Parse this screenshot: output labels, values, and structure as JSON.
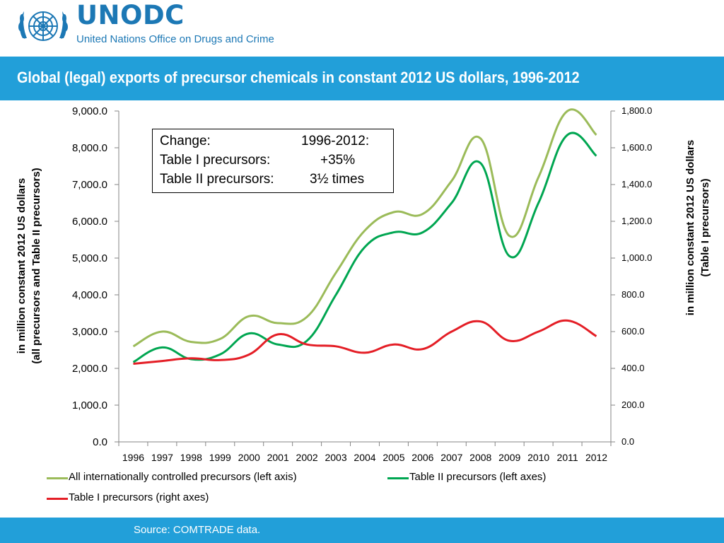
{
  "header": {
    "logo_title": "UNODC",
    "logo_subtitle": "United Nations Office on Drugs and Crime",
    "brand_color": "#1c78b5",
    "band_color": "#229fd9"
  },
  "slide_title": "Global (legal) exports of precursor chemicals in constant 2012 US dollars, 1996-2012",
  "footer": {
    "source": "Source: COMTRADE data."
  },
  "chart_data": {
    "type": "line",
    "title": "Global (legal) exports of precursor chemicals in constant 2012 US dollars, 1996-2012",
    "x": [
      "1996",
      "1997",
      "1998",
      "1999",
      "2000",
      "2001",
      "2002",
      "2003",
      "2004",
      "2005",
      "2006",
      "2007",
      "2008",
      "2009",
      "2010",
      "2011",
      "2012"
    ],
    "y_left_label_line1": "in million constant 2012 US dollars",
    "y_left_label_line2": "(all precursors  and Table II precursors)",
    "y_right_label_line1": "in million constant 2012 US dollars",
    "y_right_label_line2": "(Table I precursors)",
    "y_left_ticks": [
      "0.0",
      "1,000.0",
      "2,000.0",
      "3,000.0",
      "4,000.0",
      "5,000.0",
      "6,000.0",
      "7,000.0",
      "8,000.0",
      "9,000.0"
    ],
    "y_right_ticks": [
      "0.0",
      "200.0",
      "400.0",
      "600.0",
      "800.0",
      "1,000.0",
      "1,200.0",
      "1,400.0",
      "1,600.0",
      "1,800.0"
    ],
    "ylim_left": [
      0,
      9000
    ],
    "ylim_right": [
      0,
      1800
    ],
    "series": [
      {
        "name": "All internationally controlled precursors (left axis)",
        "axis": "left",
        "color": "#9bbb59",
        "values": [
          2600,
          3000,
          2720,
          2800,
          3420,
          3230,
          3400,
          4600,
          5750,
          6250,
          6200,
          7100,
          8250,
          5600,
          7200,
          9000,
          8350
        ]
      },
      {
        "name": "Table II precursors (left axes)",
        "axis": "left",
        "color": "#00a651",
        "values": [
          2170,
          2570,
          2250,
          2380,
          2950,
          2650,
          2750,
          4000,
          5300,
          5700,
          5700,
          6500,
          7580,
          5050,
          6500,
          8350,
          7780
        ]
      },
      {
        "name": "Table I precursors (right axes)",
        "axis": "right",
        "color": "#e41e26",
        "values": [
          425,
          440,
          455,
          445,
          475,
          585,
          530,
          520,
          485,
          530,
          505,
          600,
          655,
          550,
          600,
          660,
          575
        ]
      }
    ],
    "annotation": {
      "header_left": "Change:",
      "header_right": "1996-2012:",
      "row1_label": "Table I precursors:",
      "row1_value": "+35%",
      "row2_label": "Table II precursors:",
      "row2_value": "3½ times"
    },
    "legend_position": "bottom",
    "grid": false
  }
}
